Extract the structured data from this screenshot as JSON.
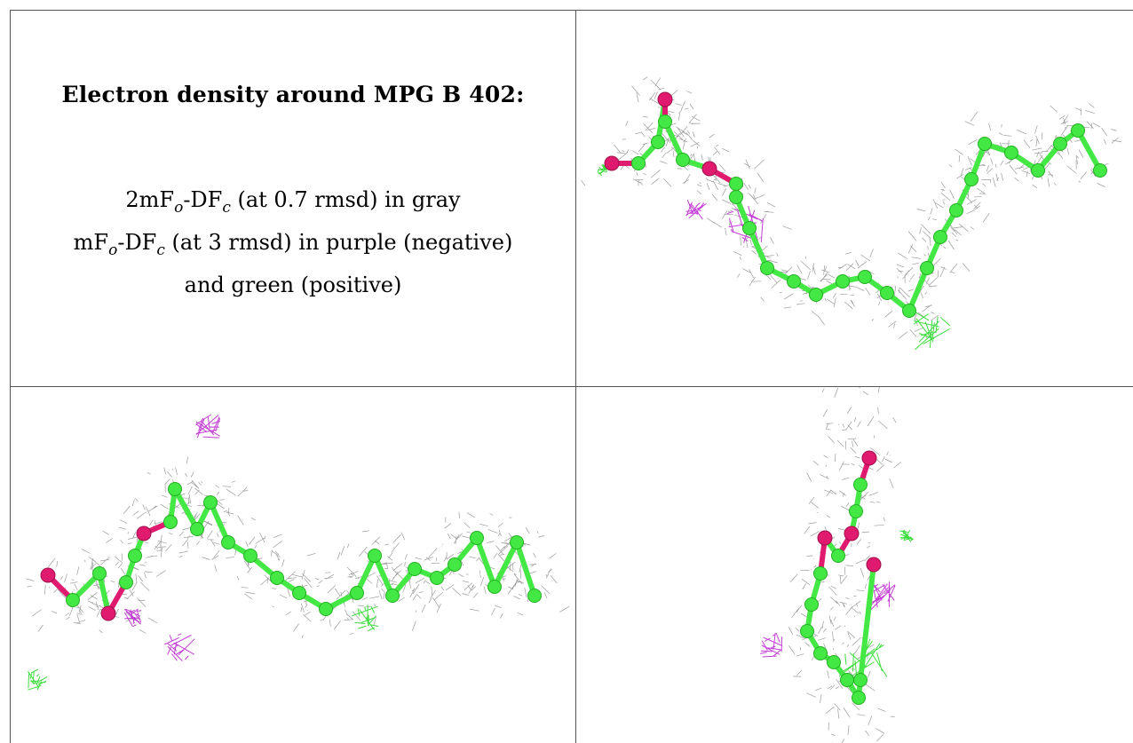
{
  "caption": {
    "title": "Electron density around MPG B 402:",
    "line1": {
      "prefix": "2mF",
      "sub1": "o",
      "mid": "-DF",
      "sub2": "c",
      "suffix": " (at 0.7 rmsd) in gray"
    },
    "line2": {
      "prefix": "mF",
      "sub1": "o",
      "mid": "-DF",
      "sub2": "c",
      "suffix": " (at 3 rmsd) in purple (negative)"
    },
    "line3": "and green (positive)"
  },
  "colors": {
    "mesh_2fofc": "#8a8a8a",
    "mesh_negative": "#c23bd4",
    "mesh_positive": "#3fdc3f",
    "carbon": "#44e844",
    "oxygen": "#e01a6e"
  }
}
